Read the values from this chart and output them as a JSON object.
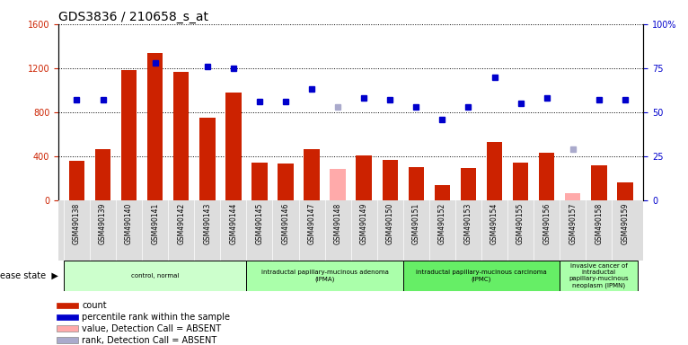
{
  "title": "GDS3836 / 210658_s_at",
  "samples": [
    "GSM490138",
    "GSM490139",
    "GSM490140",
    "GSM490141",
    "GSM490142",
    "GSM490143",
    "GSM490144",
    "GSM490145",
    "GSM490146",
    "GSM490147",
    "GSM490148",
    "GSM490149",
    "GSM490150",
    "GSM490151",
    "GSM490152",
    "GSM490153",
    "GSM490154",
    "GSM490155",
    "GSM490156",
    "GSM490157",
    "GSM490158",
    "GSM490159"
  ],
  "counts": [
    360,
    460,
    1180,
    1340,
    1170,
    750,
    980,
    340,
    330,
    460,
    null,
    405,
    365,
    300,
    135,
    290,
    530,
    340,
    430,
    null,
    320,
    165
  ],
  "absent_counts": [
    null,
    null,
    null,
    null,
    null,
    null,
    null,
    null,
    null,
    null,
    280,
    null,
    null,
    null,
    null,
    null,
    null,
    null,
    null,
    60,
    null,
    null
  ],
  "percentile_ranks": [
    57,
    57,
    null,
    78,
    null,
    76,
    75,
    56,
    56,
    63,
    null,
    58,
    57,
    53,
    46,
    53,
    70,
    55,
    58,
    null,
    57,
    57
  ],
  "absent_ranks": [
    null,
    null,
    null,
    null,
    null,
    null,
    null,
    null,
    null,
    null,
    53,
    null,
    null,
    null,
    null,
    null,
    null,
    null,
    null,
    29,
    null,
    null
  ],
  "ylim_left": [
    0,
    1600
  ],
  "ylim_right": [
    0,
    100
  ],
  "yticks_left": [
    0,
    400,
    800,
    1200,
    1600
  ],
  "yticks_right": [
    0,
    25,
    50,
    75,
    100
  ],
  "bar_color": "#cc2200",
  "absent_bar_color": "#ffaaaa",
  "dot_color": "#0000cc",
  "absent_dot_color": "#aaaacc",
  "title_fontsize": 10,
  "groups": [
    {
      "label": "control, normal",
      "start": 0,
      "end": 7,
      "color": "#ccffcc"
    },
    {
      "label": "intraductal papillary-mucinous adenoma\n(IPMA)",
      "start": 7,
      "end": 13,
      "color": "#aaffaa"
    },
    {
      "label": "intraductal papillary-mucinous carcinoma\n(IPMC)",
      "start": 13,
      "end": 19,
      "color": "#66ee66"
    },
    {
      "label": "invasive cancer of\nintraductal\npapillary-mucinous\nneoplasm (IPMN)",
      "start": 19,
      "end": 22,
      "color": "#aaffaa"
    }
  ],
  "legend_items": [
    {
      "color": "#cc2200",
      "label": "count"
    },
    {
      "color": "#0000cc",
      "label": "percentile rank within the sample"
    },
    {
      "color": "#ffaaaa",
      "label": "value, Detection Call = ABSENT"
    },
    {
      "color": "#aaaacc",
      "label": "rank, Detection Call = ABSENT"
    }
  ]
}
